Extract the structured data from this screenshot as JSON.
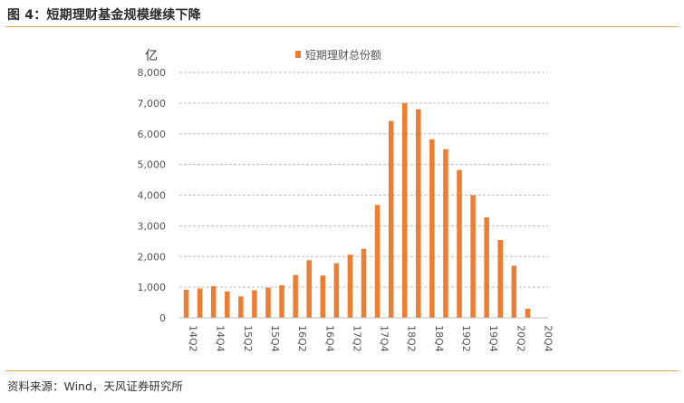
{
  "figure": {
    "title": "图 4：短期理财基金规模继续下降",
    "source": "资料来源：Wind，天风证券研究所"
  },
  "chart_data": {
    "type": "bar",
    "unit_label": "亿",
    "ylim": [
      0,
      8000
    ],
    "yticks": [
      "0",
      "1,000",
      "2,000",
      "3,000",
      "4,000",
      "5,000",
      "6,000",
      "7,000",
      "8,000"
    ],
    "ytick_values": [
      0,
      1000,
      2000,
      3000,
      4000,
      5000,
      6000,
      7000,
      8000
    ],
    "grid": true,
    "legend_position": "top",
    "color": "#ed7d31",
    "categories": [
      "14Q2",
      "14Q3",
      "14Q4",
      "15Q1",
      "15Q2",
      "15Q3",
      "15Q4",
      "16Q1",
      "16Q2",
      "16Q3",
      "16Q4",
      "17Q1",
      "17Q2",
      "17Q3",
      "17Q4",
      "18Q1",
      "18Q2",
      "18Q3",
      "18Q4",
      "19Q1",
      "19Q2",
      "19Q3",
      "19Q4",
      "20Q1",
      "20Q2",
      "20Q3",
      "20Q4"
    ],
    "xtick_labels": [
      "14Q2",
      "14Q4",
      "15Q2",
      "15Q4",
      "16Q2",
      "16Q4",
      "17Q2",
      "17Q4",
      "18Q2",
      "18Q4",
      "19Q2",
      "19Q4",
      "20Q2",
      "20Q4"
    ],
    "series": [
      {
        "name": "短期理财总份额",
        "values": [
          920,
          960,
          1030,
          860,
          700,
          900,
          980,
          1060,
          1400,
          1880,
          1380,
          1780,
          2060,
          2250,
          3680,
          6420,
          7000,
          6800,
          5820,
          5500,
          4820,
          4000,
          3280,
          2540,
          1700,
          300,
          null
        ]
      }
    ]
  }
}
